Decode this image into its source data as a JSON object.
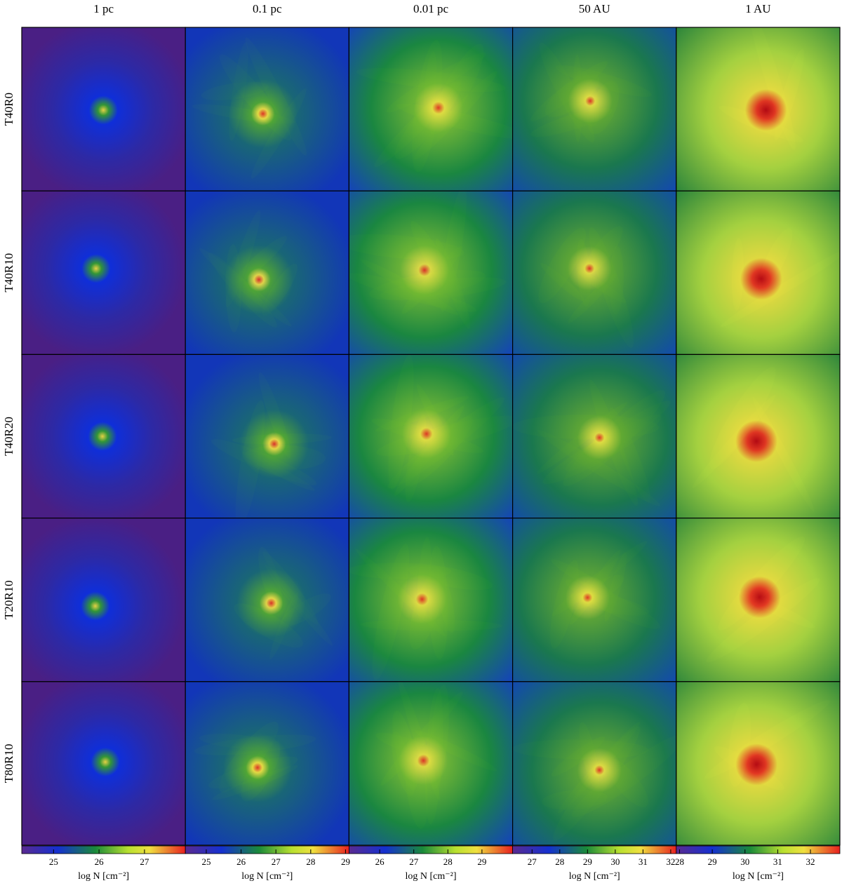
{
  "columns": [
    {
      "title": "1 pc",
      "colorbar": {
        "label": "log N [cm⁻²]",
        "lim": [
          24.3,
          27.9
        ],
        "ticks": [
          25,
          26,
          27
        ]
      }
    },
    {
      "title": "0.1 pc",
      "colorbar": {
        "label": "log N [cm⁻²]",
        "lim": [
          24.4,
          29.1
        ],
        "ticks": [
          25,
          26,
          27,
          28,
          29
        ]
      }
    },
    {
      "title": "0.01 pc",
      "colorbar": {
        "label": "log N [cm⁻²]",
        "lim": [
          25.1,
          29.9
        ],
        "ticks": [
          26,
          27,
          28,
          29
        ]
      }
    },
    {
      "title": "50 AU",
      "colorbar": {
        "label": "log N [cm⁻²]",
        "lim": [
          26.3,
          32.2
        ],
        "ticks": [
          27,
          28,
          29,
          30,
          31,
          32
        ]
      }
    },
    {
      "title": "1 AU",
      "colorbar": {
        "label": "log N [cm⁻²]",
        "lim": [
          27.9,
          32.9
        ],
        "ticks": [
          28,
          29,
          30,
          31,
          32
        ]
      }
    }
  ],
  "rows": [
    "T40R0",
    "T40R10",
    "T40R20",
    "T20R10",
    "T80R10"
  ]
}
